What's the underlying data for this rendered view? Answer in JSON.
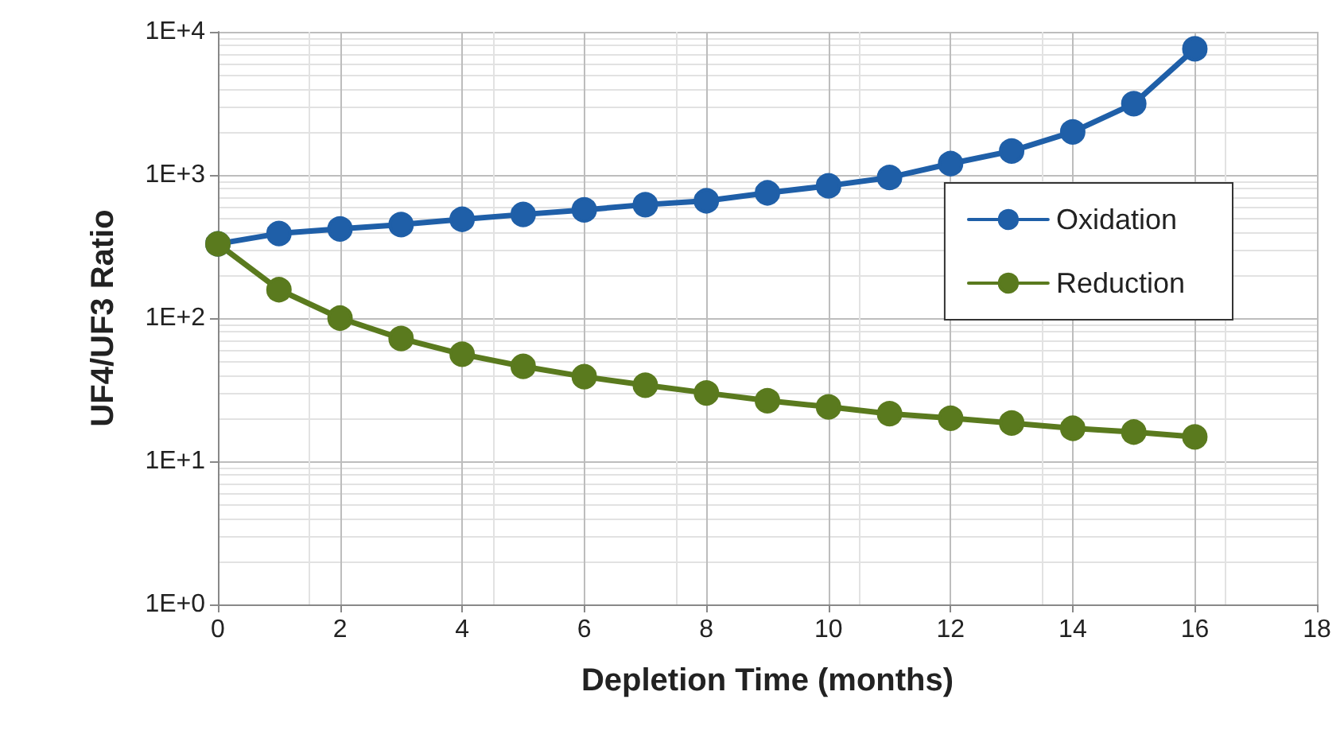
{
  "chart_data": {
    "type": "line",
    "xlabel": "Depletion Time (months)",
    "ylabel": "UF4/UF3 Ratio",
    "x": [
      0,
      1,
      2,
      3,
      4,
      5,
      6,
      7,
      8,
      9,
      10,
      11,
      12,
      13,
      14,
      15,
      16
    ],
    "series": [
      {
        "name": "Oxidation",
        "color": "#1f5fa8",
        "values": [
          330,
          390,
          420,
          450,
          490,
          530,
          570,
          620,
          660,
          750,
          840,
          960,
          1200,
          1470,
          2000,
          3150,
          7600
        ]
      },
      {
        "name": "Reduction",
        "color": "#5a7a1e",
        "values": [
          330,
          158,
          100,
          72,
          56,
          46,
          39,
          34,
          30,
          26.5,
          24,
          21.5,
          20,
          18.5,
          17,
          16,
          14.8
        ]
      }
    ],
    "xlim": [
      0,
      18
    ],
    "xticks": [
      0,
      2,
      4,
      6,
      8,
      10,
      12,
      14,
      16,
      18
    ],
    "ylim": [
      1,
      10000
    ],
    "yticks": [
      {
        "value": 1,
        "label": "1E+0"
      },
      {
        "value": 10,
        "label": "1E+1"
      },
      {
        "value": 100,
        "label": "1E+2"
      },
      {
        "value": 1000,
        "label": "1E+3"
      },
      {
        "value": 10000,
        "label": "1E+4"
      }
    ],
    "log": "y",
    "grid": true,
    "legend": "right",
    "marker": "circle",
    "line_style": "solid"
  }
}
